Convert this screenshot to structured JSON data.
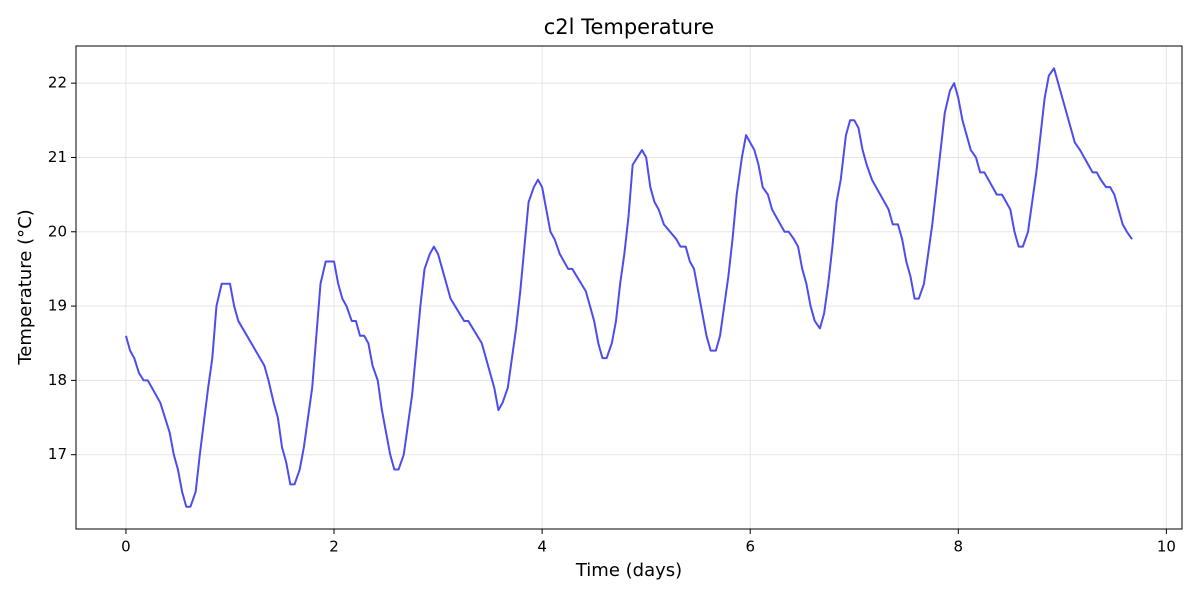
{
  "chart_data": {
    "type": "line",
    "title": "c2l Temperature",
    "x_label": "Time (days)",
    "y_label": "Temperature (°C)",
    "x": [
      0,
      0.04,
      0.08,
      0.125,
      0.17,
      0.21,
      0.33,
      0.42,
      0.46,
      0.5,
      0.54,
      0.58,
      0.62,
      0.67,
      0.71,
      0.79,
      0.83,
      0.87,
      0.92,
      1.0,
      1.04,
      1.08,
      1.33,
      1.37,
      1.42,
      1.46,
      1.5,
      1.54,
      1.58,
      1.62,
      1.67,
      1.71,
      1.79,
      1.83,
      1.87,
      1.92,
      2.0,
      2.04,
      2.08,
      2.12,
      2.17,
      2.21,
      2.25,
      2.29,
      2.33,
      2.37,
      2.42,
      2.46,
      2.5,
      2.54,
      2.58,
      2.62,
      2.67,
      2.71,
      2.75,
      2.79,
      2.83,
      2.87,
      2.92,
      2.96,
      3.0,
      3.04,
      3.08,
      3.12,
      3.25,
      3.29,
      3.42,
      3.5,
      3.54,
      3.58,
      3.62,
      3.67,
      3.75,
      3.79,
      3.83,
      3.87,
      3.92,
      3.96,
      4.0,
      4.04,
      4.08,
      4.12,
      4.17,
      4.25,
      4.29,
      4.42,
      4.46,
      4.5,
      4.54,
      4.58,
      4.62,
      4.67,
      4.71,
      4.75,
      4.79,
      4.83,
      4.87,
      4.96,
      5.0,
      5.04,
      5.08,
      5.12,
      5.17,
      5.29,
      5.33,
      5.38,
      5.42,
      5.46,
      5.5,
      5.54,
      5.58,
      5.62,
      5.67,
      5.71,
      5.75,
      5.79,
      5.83,
      5.87,
      5.92,
      5.96,
      6.0,
      6.04,
      6.08,
      6.12,
      6.17,
      6.21,
      6.29,
      6.33,
      6.37,
      6.42,
      6.46,
      6.5,
      6.54,
      6.58,
      6.62,
      6.67,
      6.71,
      6.75,
      6.79,
      6.83,
      6.87,
      6.92,
      6.96,
      7.0,
      7.04,
      7.08,
      7.12,
      7.17,
      7.21,
      7.25,
      7.29,
      7.33,
      7.37,
      7.42,
      7.46,
      7.5,
      7.54,
      7.58,
      7.62,
      7.67,
      7.71,
      7.75,
      7.79,
      7.83,
      7.87,
      7.92,
      7.96,
      8.0,
      8.04,
      8.08,
      8.12,
      8.17,
      8.21,
      8.25,
      8.29,
      8.33,
      8.37,
      8.42,
      8.46,
      8.5,
      8.54,
      8.58,
      8.62,
      8.67,
      8.71,
      8.75,
      8.79,
      8.83,
      8.87,
      8.92,
      8.96,
      9.0,
      9.04,
      9.08,
      9.12,
      9.17,
      9.21,
      9.25,
      9.29,
      9.33,
      9.37,
      9.42,
      9.46,
      9.5,
      9.54,
      9.58,
      9.62,
      9.67
    ],
    "series": [
      {
        "color": "#4c4cf0",
        "values": [
          18.6,
          18.4,
          18.3,
          18.1,
          18.0,
          18.0,
          17.7,
          17.3,
          17.0,
          16.8,
          16.5,
          16.3,
          16.3,
          16.5,
          17.0,
          17.9,
          18.3,
          19.0,
          19.3,
          19.3,
          19.0,
          18.8,
          18.2,
          18.0,
          17.7,
          17.5,
          17.1,
          16.9,
          16.6,
          16.6,
          16.8,
          17.1,
          17.9,
          18.6,
          19.3,
          19.6,
          19.6,
          19.3,
          19.1,
          19.0,
          18.8,
          18.8,
          18.6,
          18.6,
          18.5,
          18.2,
          18.0,
          17.6,
          17.3,
          17.0,
          16.8,
          16.8,
          17.0,
          17.4,
          17.8,
          18.4,
          19.0,
          19.5,
          19.7,
          19.8,
          19.7,
          19.5,
          19.3,
          19.1,
          18.8,
          18.8,
          18.5,
          18.1,
          17.9,
          17.6,
          17.7,
          17.9,
          18.7,
          19.2,
          19.8,
          20.4,
          20.6,
          20.7,
          20.6,
          20.3,
          20.0,
          19.9,
          19.7,
          19.5,
          19.5,
          19.2,
          19.0,
          18.8,
          18.5,
          18.3,
          18.3,
          18.5,
          18.8,
          19.3,
          19.7,
          20.2,
          20.9,
          21.1,
          21.0,
          20.6,
          20.4,
          20.3,
          20.1,
          19.9,
          19.8,
          19.8,
          19.6,
          19.5,
          19.2,
          18.9,
          18.6,
          18.4,
          18.4,
          18.6,
          19.0,
          19.4,
          19.9,
          20.5,
          21.0,
          21.3,
          21.2,
          21.1,
          20.9,
          20.6,
          20.5,
          20.3,
          20.1,
          20.0,
          20.0,
          19.9,
          19.8,
          19.5,
          19.3,
          19.0,
          18.8,
          18.7,
          18.9,
          19.3,
          19.8,
          20.4,
          20.7,
          21.3,
          21.5,
          21.5,
          21.4,
          21.1,
          20.9,
          20.7,
          20.6,
          20.5,
          20.4,
          20.3,
          20.1,
          20.1,
          19.9,
          19.6,
          19.4,
          19.1,
          19.1,
          19.3,
          19.7,
          20.1,
          20.6,
          21.1,
          21.6,
          21.9,
          22.0,
          21.8,
          21.5,
          21.3,
          21.1,
          21.0,
          20.8,
          20.8,
          20.7,
          20.6,
          20.5,
          20.5,
          20.4,
          20.3,
          20.0,
          19.8,
          19.8,
          20.0,
          20.4,
          20.8,
          21.3,
          21.8,
          22.1,
          22.2,
          22.0,
          21.8,
          21.6,
          21.4,
          21.2,
          21.1,
          21.0,
          20.9,
          20.8,
          20.8,
          20.7,
          20.6,
          20.6,
          20.5,
          20.3,
          20.1,
          20.0,
          19.9
        ]
      }
    ],
    "xlim": [
      -0.48,
      10.15
    ],
    "ylim": [
      16.0,
      22.5
    ],
    "xticks": [
      0,
      2,
      4,
      6,
      8,
      10
    ],
    "yticks": [
      17,
      18,
      19,
      20,
      21,
      22
    ],
    "grid": true
  }
}
